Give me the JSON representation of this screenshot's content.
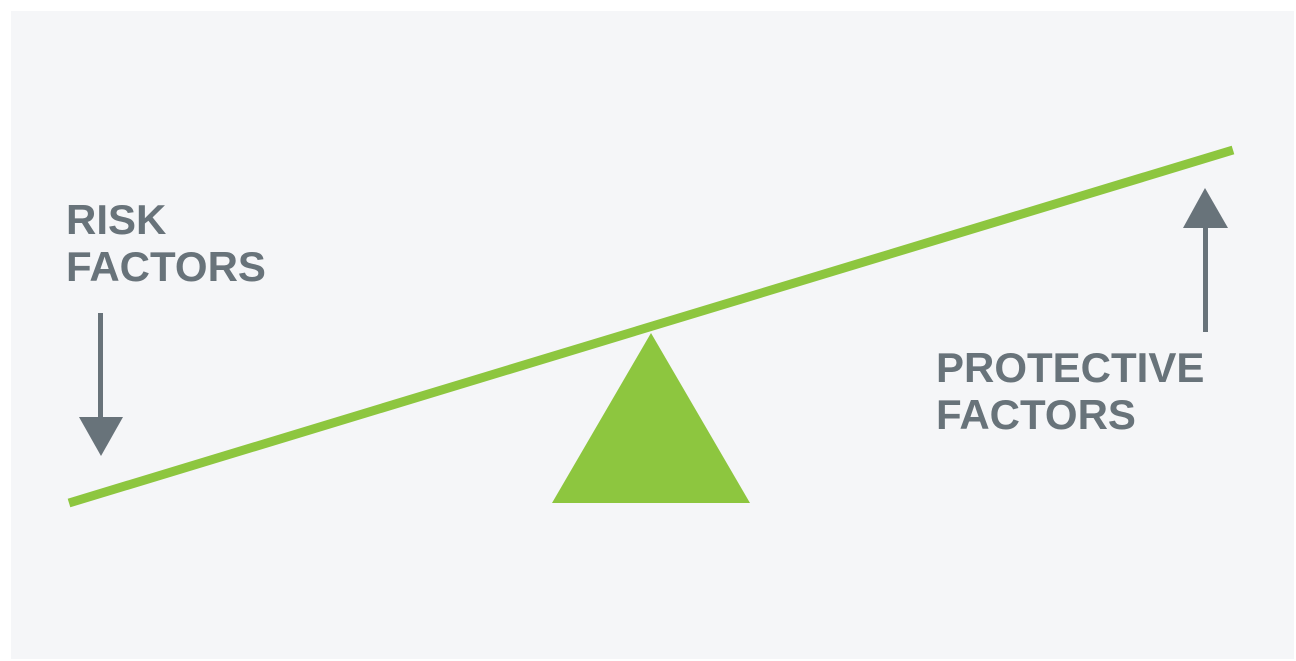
{
  "risk": {
    "line1": "RISK",
    "line2": "FACTORS"
  },
  "protective": {
    "line1": "PROTECTIVE",
    "line2": "FACTORS"
  },
  "colors": {
    "background": "#f5f6f8",
    "beam": "#8dc63f",
    "fulcrum": "#8dc63f",
    "text": "#68737a",
    "arrow": "#68737a"
  },
  "icons": {
    "risk_arrow": "arrow-down-icon",
    "protective_arrow": "arrow-up-icon"
  }
}
